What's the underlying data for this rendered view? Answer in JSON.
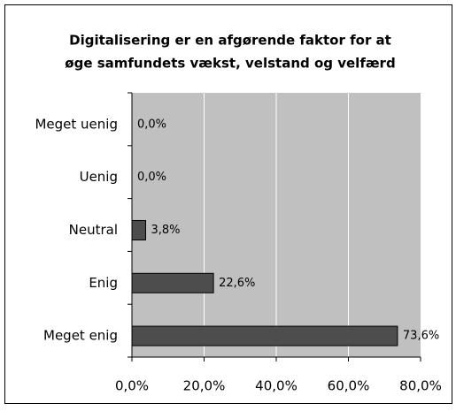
{
  "chart_data": {
    "type": "barh",
    "title": [
      "Digitalisering er en afgørende faktor for at",
      "øge samfundets vækst, velstand og velfærd"
    ],
    "categories": [
      "Meget uenig",
      "Uenig",
      "Neutral",
      "Enig",
      "Meget enig"
    ],
    "values": [
      0,
      0,
      3.8,
      22.6,
      73.6
    ],
    "value_labels": [
      "0,0%",
      "0,0%",
      "3,8%",
      "22,6%",
      "73,6%"
    ],
    "color": "#4d4d4d",
    "xlim": [
      0,
      80
    ],
    "xticks": [
      {
        "value": 0,
        "label": "0,0%"
      },
      {
        "value": 20,
        "label": "20,0%"
      },
      {
        "value": 40,
        "label": "40,0%"
      },
      {
        "value": 60,
        "label": "60,0%"
      },
      {
        "value": 80,
        "label": "80,0%"
      }
    ],
    "grid": true
  }
}
